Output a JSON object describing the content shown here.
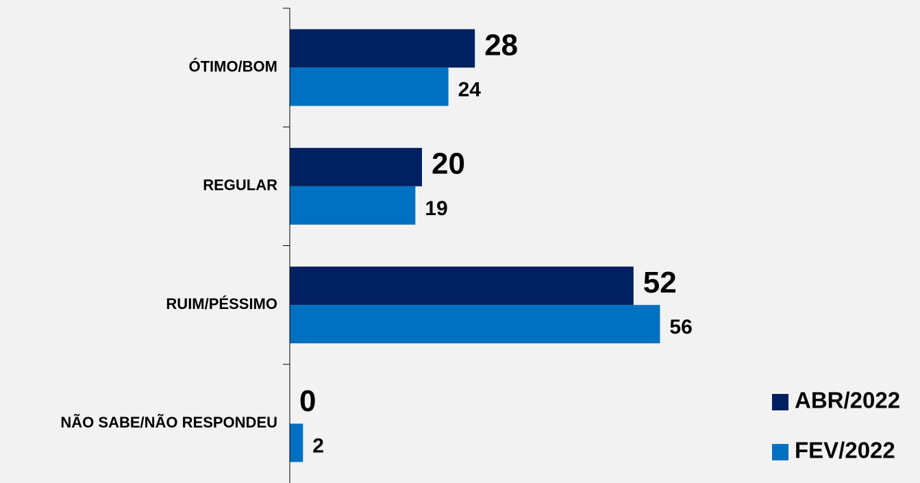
{
  "chart_data": {
    "type": "barh",
    "categories": [
      "ÓTIMO/BOM",
      "REGULAR",
      "RUIM/PÉSSIMO",
      "NÃO SABE/NÃO RESPONDEU"
    ],
    "series": [
      {
        "name": "ABR/2022",
        "color": "#002060",
        "values": [
          28,
          20,
          52,
          0
        ]
      },
      {
        "name": "FEV/2022",
        "color": "#0070c0",
        "values": [
          24,
          19,
          56,
          2
        ]
      }
    ],
    "xlim": [
      0,
      60
    ],
    "legend": "lower right"
  }
}
